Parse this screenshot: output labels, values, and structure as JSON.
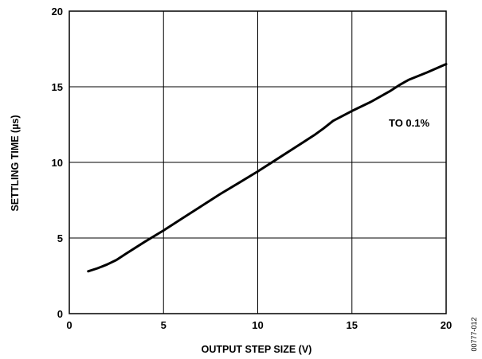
{
  "chart_data": {
    "type": "line",
    "xlabel": "OUTPUT STEP SIZE (V)",
    "ylabel": "SETTLING TIME (µs)",
    "xlim": [
      0,
      20
    ],
    "ylim": [
      0,
      20
    ],
    "xticks": [
      0,
      5,
      10,
      15,
      20
    ],
    "yticks": [
      0,
      5,
      10,
      15,
      20
    ],
    "grid": true,
    "annotation": "TO 0.1%",
    "series": [
      {
        "name": "",
        "color": "#000000",
        "x": [
          1,
          1.5,
          2,
          2.5,
          3,
          4,
          5,
          6,
          7,
          8,
          9,
          10,
          11,
          12,
          13,
          13.5,
          14,
          15,
          16,
          17,
          17.5,
          18,
          19,
          20
        ],
        "y": [
          2.8,
          3.0,
          3.25,
          3.55,
          3.95,
          4.75,
          5.5,
          6.3,
          7.1,
          7.9,
          8.65,
          9.4,
          10.2,
          11.0,
          11.8,
          12.25,
          12.75,
          13.4,
          14.0,
          14.7,
          15.1,
          15.45,
          15.95,
          16.5
        ]
      }
    ],
    "figure_id": "00777-012"
  }
}
